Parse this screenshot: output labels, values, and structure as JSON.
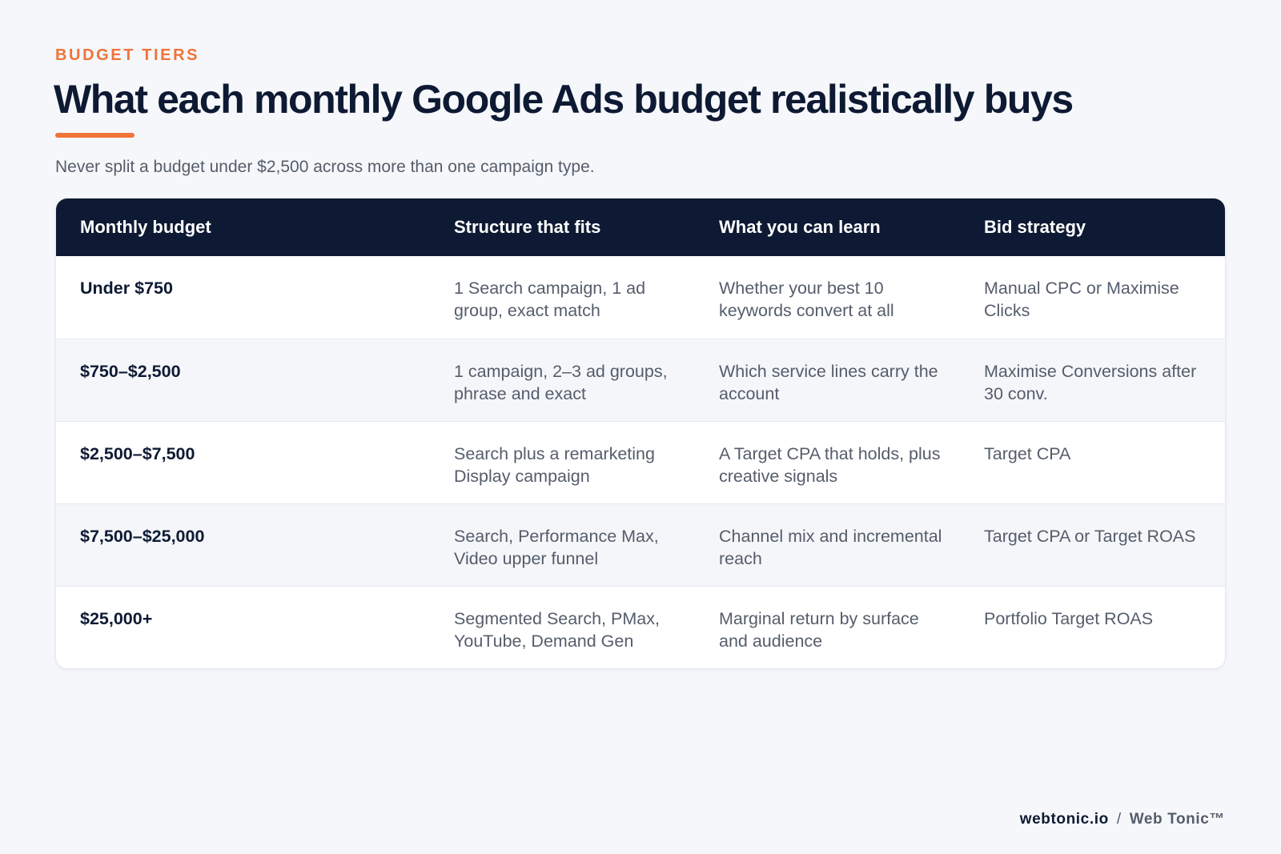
{
  "header": {
    "eyebrow": "BUDGET TIERS",
    "title": "What each monthly Google Ads budget realistically buys",
    "subtitle": "Never split a budget under $2,500 across more than one campaign type."
  },
  "table": {
    "columns": [
      "Monthly budget",
      "Structure that fits",
      "What you can learn",
      "Bid strategy"
    ],
    "rows": [
      {
        "budget": "Under $750",
        "structure": "1 Search campaign, 1 ad group, exact match",
        "learn": "Whether your best 10 keywords convert at all",
        "bid": "Manual CPC or Maximise Clicks"
      },
      {
        "budget": "$750–$2,500",
        "structure": "1 campaign, 2–3 ad groups, phrase and exact",
        "learn": "Which service lines carry the account",
        "bid": "Maximise Conversions after 30 conv."
      },
      {
        "budget": "$2,500–$7,500",
        "structure": "Search plus a remarketing Display campaign",
        "learn": "A Target CPA that holds, plus creative signals",
        "bid": "Target CPA"
      },
      {
        "budget": "$7,500–$25,000",
        "structure": "Search, Performance Max, Video upper funnel",
        "learn": "Channel mix and incremental reach",
        "bid": "Target CPA or Target ROAS"
      },
      {
        "budget": "$25,000+",
        "structure": "Segmented Search, PMax, YouTube, Demand Gen",
        "learn": "Marginal return by surface and audience",
        "bid": "Portfolio Target ROAS"
      }
    ]
  },
  "footer": {
    "site": "webtonic.io",
    "separator": "/",
    "brand": "Web Tonic™"
  },
  "colors": {
    "accent": "#f0733a",
    "navy": "#0e1a33",
    "body_text": "#555d6b",
    "background": "#f5f7fa"
  }
}
